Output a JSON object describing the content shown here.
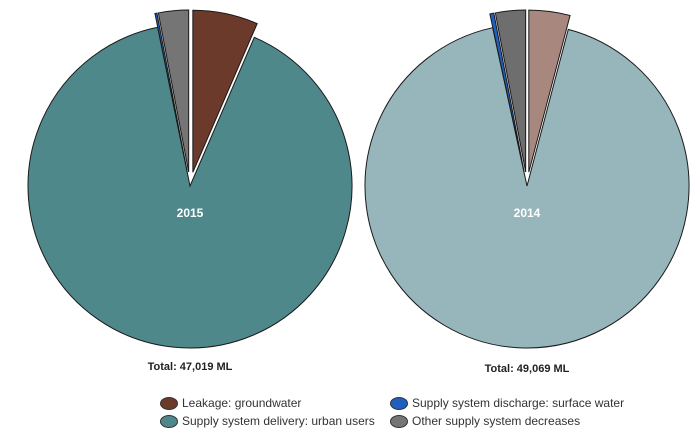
{
  "chart_data": [
    {
      "type": "pie",
      "year_label": "2015",
      "total_label": "Total: 47,019 ML",
      "slices": [
        {
          "name": "Supply system delivery: urban users",
          "value": 90.3,
          "color": "#4f888b",
          "exploded": false
        },
        {
          "name": "Supply system discharge: surface water",
          "value": 0.2,
          "color": "#1f5fbf",
          "exploded": true
        },
        {
          "name": "Other supply system decreases",
          "value": 3.0,
          "color": "#757575",
          "exploded": true
        },
        {
          "name": "Leakage: groundwater",
          "value": 6.5,
          "color": "#6b3a2a",
          "exploded": true
        }
      ]
    },
    {
      "type": "pie",
      "year_label": "2014",
      "total_label": "Total: 49,069 ML",
      "slices": [
        {
          "name": "Supply system delivery: urban users",
          "value": 92.5,
          "color": "#97b6bb",
          "exploded": false
        },
        {
          "name": "Supply system discharge: surface water",
          "value": 0.4,
          "color": "#1f5fbf",
          "exploded": true
        },
        {
          "name": "Other supply system decreases",
          "value": 3.0,
          "color": "#6e6e6e",
          "exploded": true
        },
        {
          "name": "Leakage: groundwater",
          "value": 4.1,
          "color": "#a8887e",
          "exploded": true
        }
      ]
    }
  ],
  "legend": [
    {
      "label": "Leakage: groundwater",
      "color": "#6b3a2a"
    },
    {
      "label": "Supply system discharge: surface water",
      "color": "#1f5fbf"
    },
    {
      "label": "Supply system delivery: urban users",
      "color": "#4f888b"
    },
    {
      "label": "Other supply system decreases",
      "color": "#757575"
    }
  ]
}
